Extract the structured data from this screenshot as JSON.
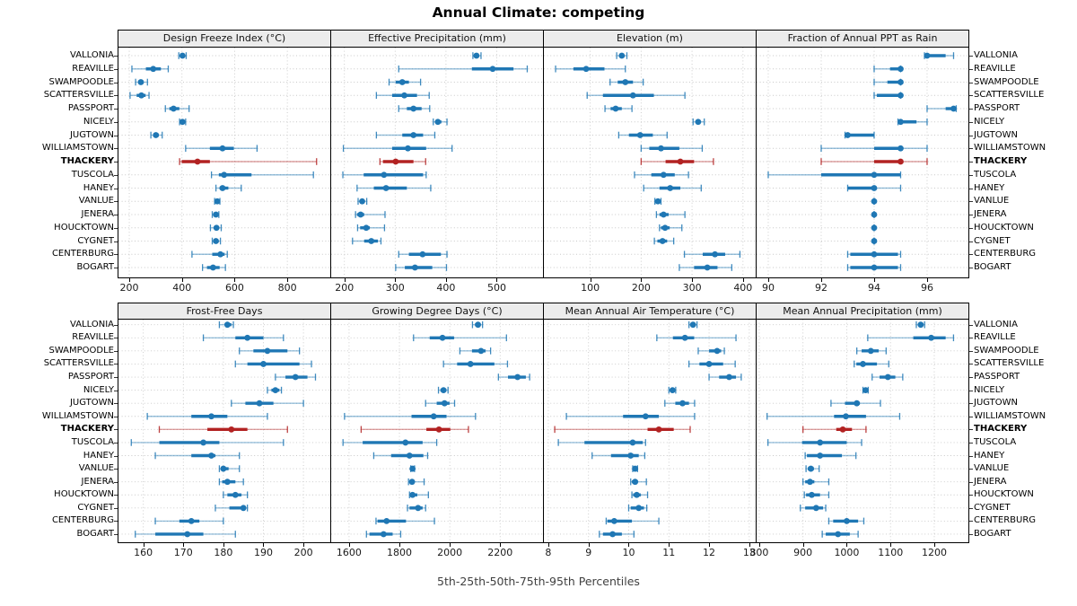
{
  "title": "Annual Climate: competing",
  "footer": "5th-25th-50th-75th-95th Percentiles",
  "highlight_category": "THACKERY",
  "colors": {
    "series": "#1f77b4",
    "series_light": "rgba(31,119,180,0.45)",
    "highlight": "#b22222",
    "highlight_light": "rgba(178,34,34,0.42)",
    "grid": "#c8c8c8",
    "header_bg": "#ececec",
    "border": "#000000"
  },
  "chart_data": {
    "type": "dotplot-percentiles",
    "percentiles": [
      5,
      25,
      50,
      75,
      95
    ],
    "legend_note": "5th-25th-50th-75th-95th Percentiles",
    "categories": [
      "VALLONIA",
      "REAVILLE",
      "SWAMPOODLE",
      "SCATTERSVILLE",
      "PASSPORT",
      "NICELY",
      "JUGTOWN",
      "WILLIAMSTOWN",
      "THACKERY",
      "TUSCOLA",
      "HANEY",
      "VANLUE",
      "JENERA",
      "HOUCKTOWN",
      "CYGNET",
      "CENTERBURG",
      "BOGART"
    ],
    "panels": [
      {
        "title": "Design Freeze Index (°C)",
        "xlim": [
          159,
          963
        ],
        "ticks": [
          200,
          400,
          600,
          800
        ],
        "values": [
          [
            388,
            396,
            402,
            408,
            416
          ],
          [
            210,
            263,
            291,
            320,
            348
          ],
          [
            224,
            236,
            244,
            254,
            269
          ],
          [
            203,
            228,
            246,
            262,
            275
          ],
          [
            337,
            352,
            368,
            390,
            427
          ],
          [
            391,
            397,
            402,
            407,
            414
          ],
          [
            282,
            292,
            301,
            312,
            325
          ],
          [
            414,
            506,
            554,
            597,
            685
          ],
          [
            391,
            399,
            459,
            506,
            911
          ],
          [
            512,
            540,
            560,
            664,
            899
          ],
          [
            529,
            543,
            554,
            576,
            625
          ],
          [
            524,
            530,
            534,
            538,
            544
          ],
          [
            515,
            523,
            529,
            535,
            540
          ],
          [
            508,
            522,
            531,
            540,
            549
          ],
          [
            515,
            524,
            529,
            537,
            546
          ],
          [
            438,
            515,
            546,
            562,
            572
          ],
          [
            478,
            495,
            518,
            543,
            565
          ]
        ]
      },
      {
        "title": "Effective Precipitation (mm)",
        "xlim": [
          174,
          591
        ],
        "ticks": [
          200,
          300,
          400,
          500
        ],
        "values": [
          [
            453,
            457,
            460,
            464,
            469
          ],
          [
            307,
            451,
            492,
            533,
            560
          ],
          [
            288,
            301,
            314,
            327,
            350
          ],
          [
            263,
            294,
            318,
            343,
            367
          ],
          [
            307,
            323,
            336,
            352,
            368
          ],
          [
            375,
            379,
            384,
            391,
            402
          ],
          [
            263,
            314,
            336,
            355,
            378
          ],
          [
            198,
            294,
            325,
            361,
            412
          ],
          [
            270,
            276,
            301,
            336,
            360
          ],
          [
            197,
            238,
            278,
            355,
            361
          ],
          [
            225,
            258,
            282,
            323,
            370
          ],
          [
            227,
            231,
            235,
            239,
            244
          ],
          [
            222,
            225,
            232,
            239,
            280
          ],
          [
            226,
            231,
            243,
            250,
            279
          ],
          [
            216,
            239,
            253,
            266,
            272
          ],
          [
            307,
            327,
            354,
            390,
            402
          ],
          [
            301,
            319,
            339,
            373,
            401
          ]
        ]
      },
      {
        "title": "Elevation (m)",
        "xlim": [
          9,
          425
        ],
        "ticks": [
          100,
          200,
          300,
          400
        ],
        "values": [
          [
            152,
            158,
            162,
            166,
            172
          ],
          [
            32,
            67,
            92,
            128,
            169
          ],
          [
            139,
            154,
            169,
            184,
            204
          ],
          [
            94,
            125,
            184,
            225,
            286
          ],
          [
            129,
            140,
            150,
            162,
            182
          ],
          [
            302,
            307,
            312,
            317,
            324
          ],
          [
            156,
            176,
            198,
            223,
            251
          ],
          [
            200,
            216,
            239,
            275,
            320
          ],
          [
            200,
            248,
            277,
            304,
            342
          ],
          [
            187,
            220,
            244,
            266,
            293
          ],
          [
            205,
            236,
            257,
            277,
            318
          ],
          [
            227,
            231,
            233,
            236,
            239
          ],
          [
            230,
            236,
            244,
            254,
            286
          ],
          [
            236,
            239,
            247,
            256,
            280
          ],
          [
            226,
            232,
            242,
            251,
            264
          ],
          [
            285,
            321,
            345,
            365,
            394
          ],
          [
            275,
            304,
            330,
            350,
            378
          ]
        ]
      },
      {
        "title": "Fraction of Annual PPT as Rain",
        "xlim": [
          89.56,
          97.56
        ],
        "ticks": [
          90,
          92,
          94,
          96
        ],
        "values": [
          [
            95.9,
            96.0,
            96.0,
            96.7,
            97.0
          ],
          [
            94.0,
            94.6,
            95.0,
            95.0,
            95.0
          ],
          [
            94.0,
            94.5,
            95.0,
            95.0,
            95.0
          ],
          [
            94.0,
            94.1,
            95.0,
            95.0,
            95.0
          ],
          [
            96.0,
            96.7,
            97.0,
            97.0,
            97.1
          ],
          [
            94.9,
            95.0,
            95.0,
            95.6,
            96.0
          ],
          [
            92.9,
            93.0,
            93.0,
            94.0,
            94.0
          ],
          [
            92.0,
            94.0,
            95.0,
            95.0,
            96.0
          ],
          [
            92.0,
            94.0,
            95.0,
            95.0,
            96.0
          ],
          [
            90.0,
            92.0,
            94.0,
            95.0,
            95.0
          ],
          [
            93.0,
            93.0,
            94.0,
            94.0,
            95.0
          ],
          [
            94.0,
            94.0,
            94.0,
            94.0,
            94.0
          ],
          [
            94.0,
            94.0,
            94.0,
            94.0,
            94.0
          ],
          [
            94.0,
            94.0,
            94.0,
            94.0,
            94.0
          ],
          [
            94.0,
            94.0,
            94.0,
            94.0,
            94.0
          ],
          [
            93.0,
            93.1,
            94.0,
            94.9,
            95.0
          ],
          [
            93.0,
            93.1,
            94.0,
            94.9,
            95.0
          ]
        ]
      },
      {
        "title": "Frost-Free Days",
        "xlim": [
          153.8,
          206.7
        ],
        "ticks": [
          160,
          170,
          180,
          190,
          200
        ],
        "values": [
          [
            179,
            180.5,
            181,
            182,
            182.5
          ],
          [
            175,
            183,
            186,
            190,
            195
          ],
          [
            184,
            187.5,
            191,
            196,
            199
          ],
          [
            183,
            186,
            190,
            199,
            202
          ],
          [
            193,
            195.5,
            198,
            201,
            203
          ],
          [
            191,
            192,
            193,
            194,
            194.5
          ],
          [
            182,
            185.5,
            189,
            192.5,
            200
          ],
          [
            161,
            172,
            177,
            181,
            191
          ],
          [
            164,
            176,
            182,
            186,
            196
          ],
          [
            157,
            164,
            175,
            179,
            195
          ],
          [
            163,
            172,
            177,
            178,
            184
          ],
          [
            179,
            179.4,
            180,
            181.3,
            184
          ],
          [
            179,
            179.7,
            181,
            183,
            185
          ],
          [
            180,
            181,
            183,
            184.5,
            186
          ],
          [
            178,
            181.5,
            185,
            185.5,
            186
          ],
          [
            163,
            169,
            172,
            174,
            180
          ],
          [
            158,
            163,
            171,
            175,
            183
          ]
        ]
      },
      {
        "title": "Growing Degree Days (°C)",
        "xlim": [
          1529,
          2370
        ],
        "ticks": [
          1600,
          1800,
          2000,
          2200
        ],
        "values": [
          [
            2090,
            2100,
            2112,
            2122,
            2130
          ],
          [
            1856,
            1920,
            1971,
            2017,
            2225
          ],
          [
            2040,
            2088,
            2124,
            2142,
            2162
          ],
          [
            1975,
            2029,
            2082,
            2177,
            2229
          ],
          [
            2193,
            2231,
            2269,
            2302,
            2317
          ],
          [
            1955,
            1963,
            1975,
            1986,
            1993
          ],
          [
            1904,
            1948,
            1979,
            1999,
            2019
          ],
          [
            1582,
            1848,
            1936,
            1987,
            2102
          ],
          [
            1648,
            1907,
            1957,
            2002,
            2074
          ],
          [
            1576,
            1654,
            1824,
            1892,
            1948
          ],
          [
            1698,
            1767,
            1840,
            1895,
            1912
          ],
          [
            1845,
            1849,
            1852,
            1856,
            1860
          ],
          [
            1836,
            1841,
            1850,
            1860,
            1898
          ],
          [
            1840,
            1844,
            1852,
            1871,
            1915
          ],
          [
            1832,
            1840,
            1874,
            1892,
            1904
          ],
          [
            1707,
            1713,
            1749,
            1826,
            1939
          ],
          [
            1669,
            1681,
            1737,
            1773,
            1805
          ]
        ]
      },
      {
        "title": "Mean Annual Air Temperature (°C)",
        "xlim": [
          7.89,
          13.16
        ],
        "ticks": [
          8,
          9,
          10,
          11,
          12,
          13
        ],
        "values": [
          [
            11.5,
            11.55,
            11.6,
            11.66,
            11.7
          ],
          [
            10.7,
            11.1,
            11.4,
            11.63,
            12.67
          ],
          [
            11.73,
            12.0,
            12.2,
            12.3,
            12.38
          ],
          [
            11.5,
            11.76,
            12.0,
            12.35,
            12.65
          ],
          [
            12.0,
            12.25,
            12.5,
            12.67,
            12.8
          ],
          [
            11.0,
            11.04,
            11.09,
            11.13,
            11.17
          ],
          [
            10.9,
            11.16,
            11.34,
            11.5,
            11.64
          ],
          [
            8.45,
            9.86,
            10.42,
            10.75,
            11.64
          ],
          [
            8.16,
            10.47,
            10.75,
            11.12,
            11.53
          ],
          [
            8.25,
            8.9,
            10.1,
            10.35,
            10.42
          ],
          [
            9.09,
            9.56,
            10.05,
            10.25,
            10.4
          ],
          [
            10.1,
            10.13,
            10.16,
            10.19,
            10.22
          ],
          [
            10.05,
            10.08,
            10.16,
            10.23,
            10.44
          ],
          [
            10.08,
            10.11,
            10.2,
            10.3,
            10.47
          ],
          [
            10.0,
            10.05,
            10.25,
            10.38,
            10.45
          ],
          [
            9.44,
            9.47,
            9.64,
            10.08,
            10.75
          ],
          [
            9.27,
            9.36,
            9.6,
            9.83,
            10.13
          ]
        ]
      },
      {
        "title": "Mean Annual Precipitation (mm)",
        "xlim": [
          794,
          1278
        ],
        "ticks": [
          800,
          900,
          1000,
          1100,
          1200
        ],
        "values": [
          [
            1159,
            1164,
            1169,
            1174,
            1178
          ],
          [
            1048,
            1152,
            1193,
            1226,
            1244
          ],
          [
            1023,
            1034,
            1055,
            1073,
            1090
          ],
          [
            1017,
            1022,
            1037,
            1069,
            1096
          ],
          [
            1058,
            1075,
            1094,
            1111,
            1128
          ],
          [
            1037,
            1040,
            1043,
            1046,
            1049
          ],
          [
            964,
            996,
            1023,
            1030,
            1077
          ],
          [
            818,
            971,
            998,
            1044,
            1121
          ],
          [
            900,
            976,
            991,
            1012,
            1044
          ],
          [
            820,
            898,
            939,
            1000,
            1034
          ],
          [
            905,
            909,
            939,
            989,
            1021
          ],
          [
            907,
            911,
            918,
            925,
            937
          ],
          [
            900,
            905,
            916,
            926,
            959
          ],
          [
            903,
            907,
            920,
            939,
            959
          ],
          [
            894,
            905,
            930,
            946,
            952
          ],
          [
            959,
            969,
            1000,
            1026,
            1039
          ],
          [
            944,
            952,
            980,
            1007,
            1026
          ]
        ]
      }
    ]
  }
}
